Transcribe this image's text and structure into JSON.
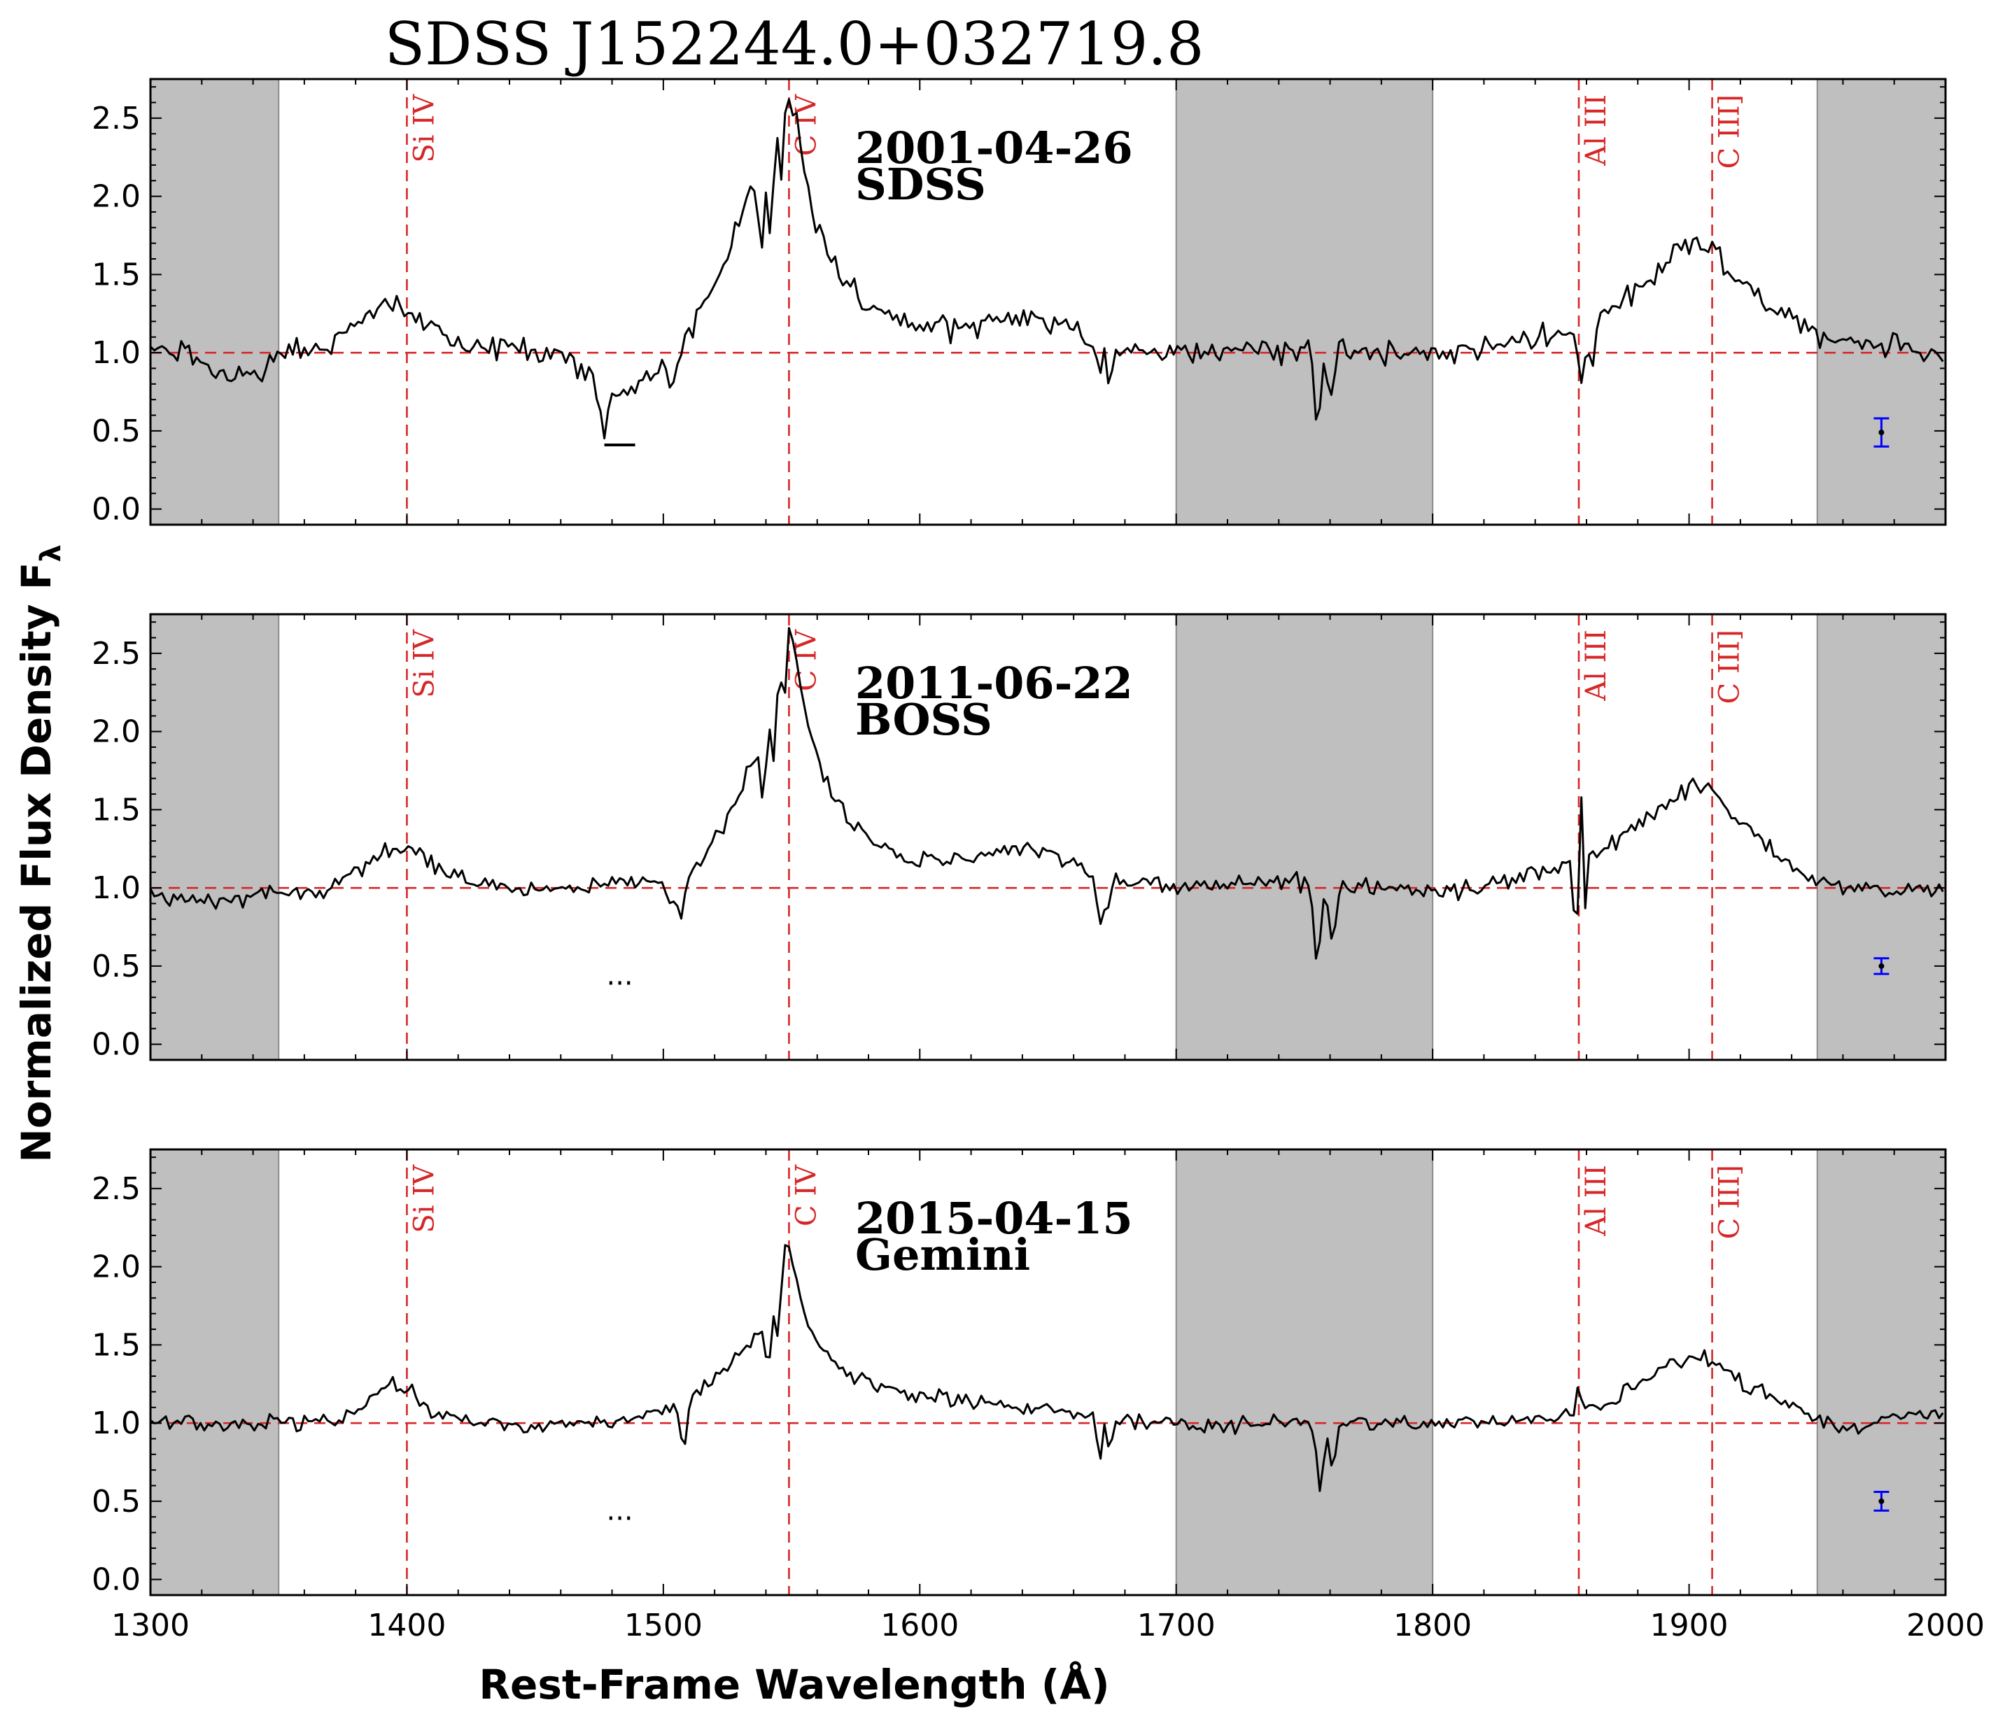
{
  "chart_data": {
    "type": "line",
    "title": "SDSS J152244.0+032719.8",
    "xlabel": "Rest-Frame Wavelength (Å)",
    "ylabel": "Normalized Flux Density F",
    "ylabel_subscript": "λ",
    "xlim": [
      1300,
      2000
    ],
    "ylim": [
      -0.1,
      2.75
    ],
    "x_ticks": [
      1300,
      1400,
      1500,
      1600,
      1700,
      1800,
      1900,
      2000
    ],
    "y_ticks": [
      0.0,
      0.5,
      1.0,
      1.5,
      2.0,
      2.5
    ],
    "y_tick_labels": [
      "0.0",
      "0.5",
      "1.0",
      "1.5",
      "2.0",
      "2.5"
    ],
    "continuum_level": 1.0,
    "shaded_regions": [
      [
        1300,
        1350
      ],
      [
        1700,
        1800
      ],
      [
        1950,
        2000
      ]
    ],
    "emission_lines": [
      {
        "label": "Si IV",
        "x": 1400
      },
      {
        "label": "C IV",
        "x": 1549
      },
      {
        "label": "Al III",
        "x": 1857
      },
      {
        "label": "C III]",
        "x": 1909
      }
    ],
    "panels": [
      {
        "date": "2001-04-26",
        "instrument": "SDSS",
        "trough_marker": {
          "type": "bar",
          "x": [
            1477,
            1489
          ],
          "y": 0.41
        },
        "error_bar": {
          "x": 1975,
          "y": 0.49,
          "err": 0.09
        },
        "profile": [
          [
            1300,
            1.02
          ],
          [
            1315,
            0.99
          ],
          [
            1325,
            0.85
          ],
          [
            1335,
            0.88
          ],
          [
            1345,
            0.9
          ],
          [
            1350,
            1.02
          ],
          [
            1370,
            1.03
          ],
          [
            1385,
            1.25
          ],
          [
            1395,
            1.32
          ],
          [
            1400,
            1.25
          ],
          [
            1408,
            1.15
          ],
          [
            1420,
            1.03
          ],
          [
            1440,
            1.05
          ],
          [
            1460,
            1.0
          ],
          [
            1475,
            0.8
          ],
          [
            1482,
            0.72
          ],
          [
            1490,
            0.8
          ],
          [
            1498,
            0.9
          ],
          [
            1505,
            0.98
          ],
          [
            1512,
            1.2
          ],
          [
            1520,
            1.42
          ],
          [
            1528,
            1.78
          ],
          [
            1535,
            2.1
          ],
          [
            1541,
            2.3
          ],
          [
            1545,
            2.55
          ],
          [
            1548,
            2.7
          ],
          [
            1552,
            2.45
          ],
          [
            1556,
            2.05
          ],
          [
            1562,
            1.7
          ],
          [
            1570,
            1.45
          ],
          [
            1580,
            1.3
          ],
          [
            1595,
            1.17
          ],
          [
            1610,
            1.15
          ],
          [
            1625,
            1.2
          ],
          [
            1640,
            1.25
          ],
          [
            1660,
            1.15
          ],
          [
            1680,
            1.03
          ],
          [
            1700,
            1.0
          ],
          [
            1730,
            1.03
          ],
          [
            1760,
            1.0
          ],
          [
            1790,
            1.0
          ],
          [
            1810,
            1.0
          ],
          [
            1830,
            1.05
          ],
          [
            1850,
            1.12
          ],
          [
            1857,
            1.15
          ],
          [
            1870,
            1.28
          ],
          [
            1885,
            1.48
          ],
          [
            1895,
            1.65
          ],
          [
            1902,
            1.73
          ],
          [
            1910,
            1.65
          ],
          [
            1920,
            1.45
          ],
          [
            1935,
            1.25
          ],
          [
            1950,
            1.12
          ],
          [
            1975,
            1.05
          ],
          [
            2000,
            1.0
          ]
        ],
        "noise": 0.055,
        "absorptions": [
          {
            "x": 1477,
            "w": 1.5,
            "d": 0.25
          },
          {
            "x": 1503,
            "w": 1.5,
            "d": 0.18
          },
          {
            "x": 1538,
            "w": 1.2,
            "d": 0.55
          },
          {
            "x": 1542,
            "w": 1.0,
            "d": 0.65
          },
          {
            "x": 1546,
            "w": 1.0,
            "d": 0.45
          },
          {
            "x": 1670,
            "w": 1.1,
            "d": 0.25
          },
          {
            "x": 1674,
            "w": 1.1,
            "d": 0.25
          },
          {
            "x": 1755,
            "w": 1.3,
            "d": 0.42
          },
          {
            "x": 1760,
            "w": 1.2,
            "d": 0.3
          },
          {
            "x": 1858,
            "w": 1.4,
            "d": 0.3
          },
          {
            "x": 1862,
            "w": 1.3,
            "d": 0.28
          }
        ]
      },
      {
        "date": "2011-06-22",
        "instrument": "BOSS",
        "trough_marker": {
          "type": "dots",
          "x": 1483,
          "y": 0.38
        },
        "error_bar": {
          "x": 1975,
          "y": 0.5,
          "err": 0.05
        },
        "profile": [
          [
            1300,
            0.95
          ],
          [
            1320,
            0.92
          ],
          [
            1340,
            0.93
          ],
          [
            1350,
            0.98
          ],
          [
            1365,
            0.97
          ],
          [
            1380,
            1.1
          ],
          [
            1392,
            1.25
          ],
          [
            1400,
            1.3
          ],
          [
            1410,
            1.15
          ],
          [
            1425,
            1.03
          ],
          [
            1450,
            0.98
          ],
          [
            1470,
            1.0
          ],
          [
            1490,
            1.05
          ],
          [
            1505,
            1.02
          ],
          [
            1515,
            1.15
          ],
          [
            1525,
            1.45
          ],
          [
            1535,
            1.8
          ],
          [
            1541,
            2.1
          ],
          [
            1545,
            2.45
          ],
          [
            1549,
            2.7
          ],
          [
            1553,
            2.35
          ],
          [
            1558,
            1.95
          ],
          [
            1565,
            1.62
          ],
          [
            1575,
            1.4
          ],
          [
            1590,
            1.2
          ],
          [
            1610,
            1.15
          ],
          [
            1625,
            1.2
          ],
          [
            1640,
            1.25
          ],
          [
            1660,
            1.15
          ],
          [
            1680,
            1.05
          ],
          [
            1700,
            1.0
          ],
          [
            1730,
            1.03
          ],
          [
            1760,
            1.02
          ],
          [
            1790,
            1.0
          ],
          [
            1810,
            0.98
          ],
          [
            1830,
            1.05
          ],
          [
            1850,
            1.13
          ],
          [
            1860,
            1.22
          ],
          [
            1870,
            1.3
          ],
          [
            1885,
            1.45
          ],
          [
            1895,
            1.58
          ],
          [
            1903,
            1.65
          ],
          [
            1910,
            1.6
          ],
          [
            1920,
            1.4
          ],
          [
            1935,
            1.2
          ],
          [
            1950,
            1.03
          ],
          [
            1975,
            0.97
          ],
          [
            2000,
            1.0
          ]
        ],
        "noise": 0.04,
        "absorptions": [
          {
            "x": 1503,
            "w": 1.2,
            "d": 0.15
          },
          {
            "x": 1507,
            "w": 1.2,
            "d": 0.3
          },
          {
            "x": 1539,
            "w": 1.0,
            "d": 0.5
          },
          {
            "x": 1543,
            "w": 1.0,
            "d": 0.45
          },
          {
            "x": 1547,
            "w": 1.0,
            "d": 0.4
          },
          {
            "x": 1670,
            "w": 1.1,
            "d": 0.28
          },
          {
            "x": 1673,
            "w": 1.1,
            "d": 0.25
          },
          {
            "x": 1755,
            "w": 1.3,
            "d": 0.48
          },
          {
            "x": 1761,
            "w": 1.2,
            "d": 0.35
          },
          {
            "x": 1856,
            "w": 0.8,
            "d": 0.72
          },
          {
            "x": 1859,
            "w": 0.7,
            "d": 0.45
          }
        ],
        "spikes": [
          {
            "x": 1857.5,
            "w": 0.6,
            "h": 0.85
          }
        ]
      },
      {
        "date": "2015-04-15",
        "instrument": "Gemini",
        "trough_marker": {
          "type": "dots",
          "x": 1483,
          "y": 0.38
        },
        "error_bar": {
          "x": 1975,
          "y": 0.5,
          "err": 0.06
        },
        "profile": [
          [
            1300,
            1.0
          ],
          [
            1340,
            1.0
          ],
          [
            1350,
            1.0
          ],
          [
            1370,
            1.0
          ],
          [
            1385,
            1.15
          ],
          [
            1393,
            1.25
          ],
          [
            1400,
            1.22
          ],
          [
            1410,
            1.08
          ],
          [
            1425,
            1.0
          ],
          [
            1450,
            0.99
          ],
          [
            1475,
            1.0
          ],
          [
            1495,
            1.05
          ],
          [
            1510,
            1.13
          ],
          [
            1520,
            1.28
          ],
          [
            1530,
            1.45
          ],
          [
            1538,
            1.58
          ],
          [
            1544,
            1.75
          ],
          [
            1548,
            2.22
          ],
          [
            1552,
            1.9
          ],
          [
            1557,
            1.58
          ],
          [
            1565,
            1.4
          ],
          [
            1575,
            1.28
          ],
          [
            1590,
            1.2
          ],
          [
            1610,
            1.15
          ],
          [
            1630,
            1.12
          ],
          [
            1650,
            1.08
          ],
          [
            1670,
            1.03
          ],
          [
            1690,
            1.0
          ],
          [
            1710,
            0.98
          ],
          [
            1740,
            1.0
          ],
          [
            1770,
            1.0
          ],
          [
            1800,
            1.0
          ],
          [
            1830,
            1.01
          ],
          [
            1850,
            1.05
          ],
          [
            1860,
            1.1
          ],
          [
            1870,
            1.13
          ],
          [
            1885,
            1.3
          ],
          [
            1895,
            1.38
          ],
          [
            1905,
            1.43
          ],
          [
            1912,
            1.35
          ],
          [
            1925,
            1.22
          ],
          [
            1940,
            1.1
          ],
          [
            1950,
            1.02
          ],
          [
            1962,
            0.95
          ],
          [
            1972,
            1.02
          ],
          [
            1985,
            1.06
          ],
          [
            2000,
            1.07
          ]
        ],
        "noise": 0.035,
        "absorptions": [
          {
            "x": 1508,
            "w": 1.2,
            "d": 0.28
          },
          {
            "x": 1541,
            "w": 1.0,
            "d": 0.3
          },
          {
            "x": 1545,
            "w": 1.0,
            "d": 0.25
          },
          {
            "x": 1670,
            "w": 1.1,
            "d": 0.22
          },
          {
            "x": 1674,
            "w": 1.1,
            "d": 0.2
          },
          {
            "x": 1756,
            "w": 1.3,
            "d": 0.4
          },
          {
            "x": 1761,
            "w": 1.2,
            "d": 0.3
          }
        ],
        "spikes": [
          {
            "x": 1857,
            "w": 0.8,
            "h": 0.18
          }
        ]
      }
    ],
    "colors": {
      "spectrum": "#000000",
      "reference": "#d62728",
      "shade_fill": "#bfbfbf",
      "shade_edge": "#8c8c8c",
      "error_bar": "#0000ff"
    }
  }
}
